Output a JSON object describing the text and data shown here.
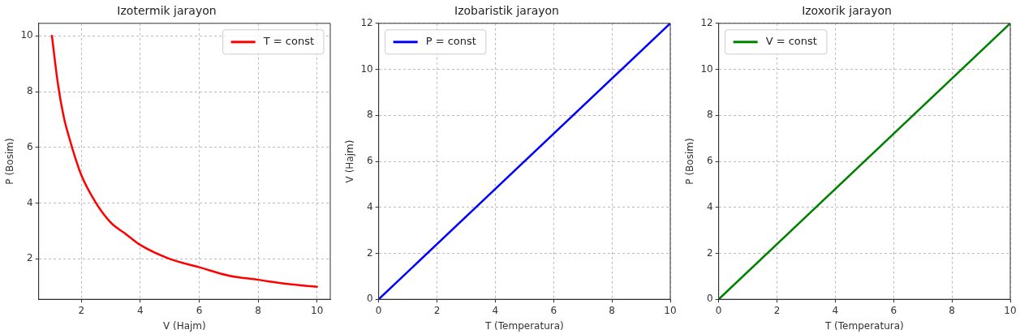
{
  "chart_data": [
    {
      "type": "line",
      "title": "Izotermik jarayon",
      "xlabel": "V (Hajm)",
      "ylabel": "P (Bosim)",
      "x": [
        1,
        1.2,
        1.4,
        1.6,
        1.8,
        2,
        2.5,
        3,
        3.5,
        4,
        5,
        6,
        7,
        8,
        9,
        10
      ],
      "series": [
        {
          "name": "T = const",
          "color": "#ff0000",
          "values": [
            10,
            8.3,
            7.1,
            6.3,
            5.6,
            5,
            4,
            3.3,
            2.9,
            2.5,
            2,
            1.7,
            1.4,
            1.25,
            1.1,
            1
          ]
        }
      ],
      "xlim": [
        0.55,
        10.45
      ],
      "ylim": [
        0.55,
        10.45
      ],
      "xticks": [
        2,
        4,
        6,
        8,
        10
      ],
      "yticks": [
        2,
        4,
        6,
        8,
        10
      ],
      "grid": true,
      "legend": "top right",
      "marker": "none",
      "line_style": "solid"
    },
    {
      "type": "line",
      "title": "Izobaristik jarayon",
      "xlabel": "T (Temperatura)",
      "ylabel": "V (Hajm)",
      "x": [
        0,
        10
      ],
      "series": [
        {
          "name": "P = const",
          "color": "#0000ff",
          "values": [
            0,
            12
          ]
        }
      ],
      "xlim": [
        0,
        10
      ],
      "ylim": [
        0,
        12
      ],
      "xticks": [
        0,
        2,
        4,
        6,
        8,
        10
      ],
      "yticks": [
        0,
        2,
        4,
        6,
        8,
        10,
        12
      ],
      "grid": true,
      "legend": "top left",
      "marker": "none",
      "line_style": "solid"
    },
    {
      "type": "line",
      "title": "Izoxorik jarayon",
      "xlabel": "T (Temperatura)",
      "ylabel": "P (Bosim)",
      "x": [
        0,
        10
      ],
      "series": [
        {
          "name": "V = const",
          "color": "#008000",
          "values": [
            0,
            12
          ]
        }
      ],
      "xlim": [
        0,
        10
      ],
      "ylim": [
        0,
        12
      ],
      "xticks": [
        0,
        2,
        4,
        6,
        8,
        10
      ],
      "yticks": [
        0,
        2,
        4,
        6,
        8,
        10,
        12
      ],
      "grid": true,
      "legend": "top left",
      "marker": "none",
      "line_style": "solid"
    }
  ]
}
